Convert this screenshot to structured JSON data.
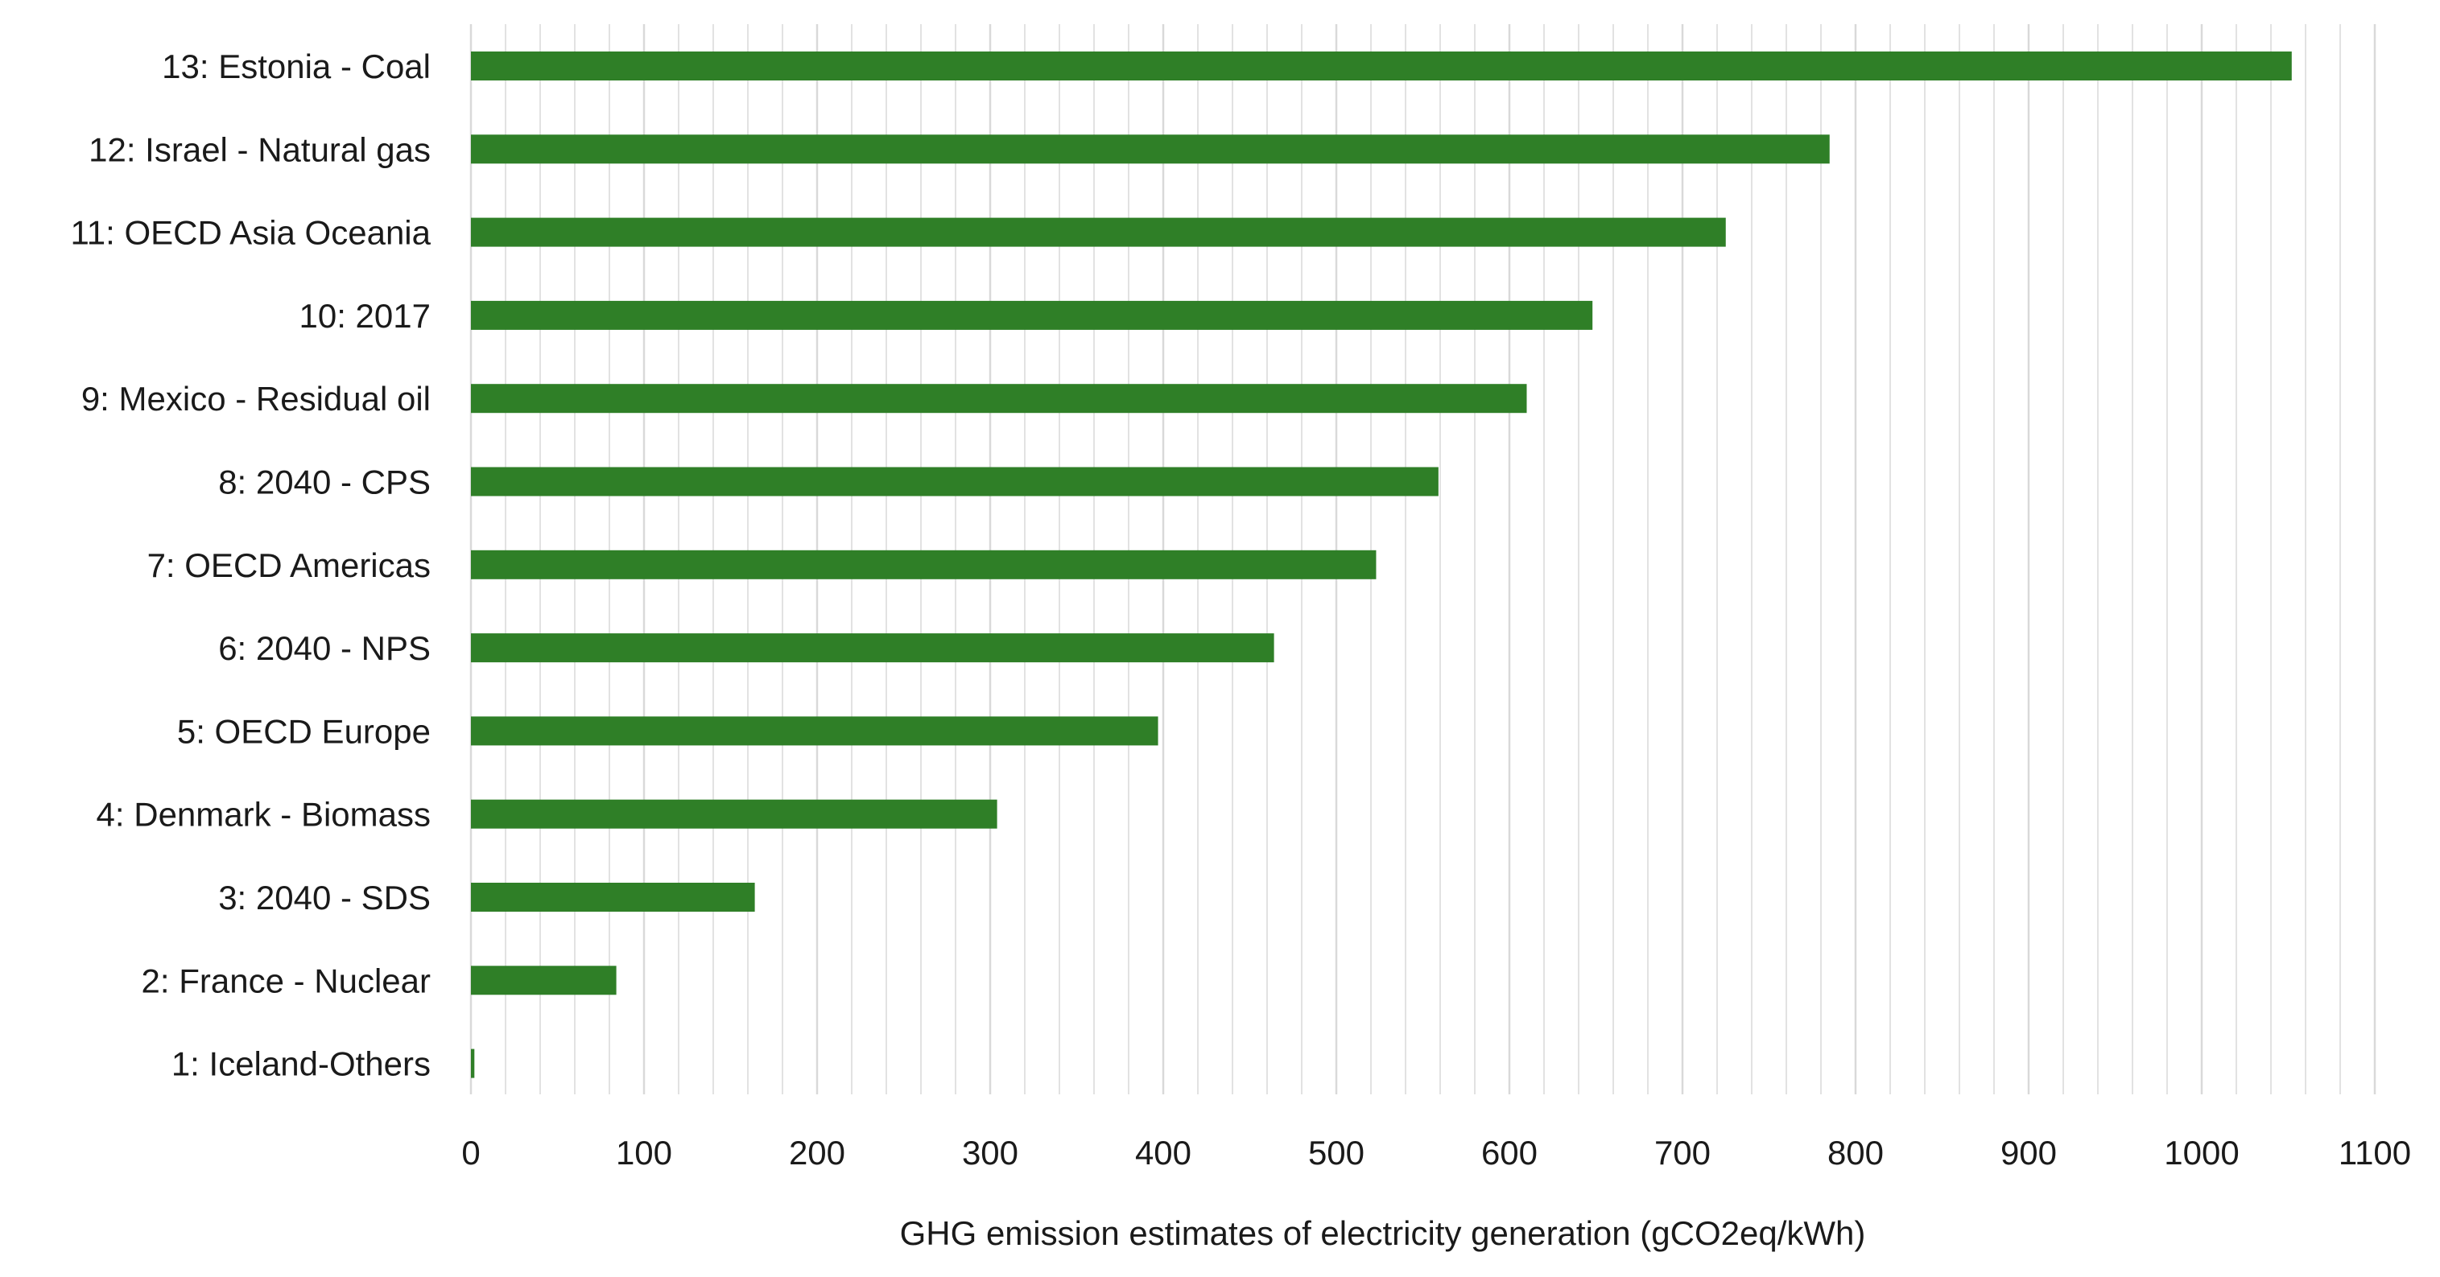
{
  "chart_data": {
    "type": "bar",
    "orientation": "horizontal",
    "categories": [
      "1: Iceland-Others",
      "2: France - Nuclear",
      "3: 2040 - SDS",
      "4: Denmark - Biomass",
      "5: OECD Europe",
      "6: 2040 - NPS",
      "7: OECD Americas",
      "8: 2040 - CPS",
      "9: Mexico - Residual oil",
      "10: 2017",
      "11: OECD Asia Oceania",
      "12: Israel - Natural gas",
      "13: Estonia - Coal"
    ],
    "values": [
      2,
      84,
      164,
      304,
      397,
      464,
      523,
      559,
      610,
      648,
      725,
      785,
      1052
    ],
    "title": "",
    "xlabel": "GHG emission estimates of electricity generation (gCO2eq/kWh)",
    "ylabel": "",
    "xlim": [
      0,
      1100
    ],
    "xticks": [
      "0",
      "100",
      "200",
      "300",
      "400",
      "500",
      "600",
      "700",
      "800",
      "900",
      "1000",
      "1100"
    ],
    "grid": "vertical",
    "bar_color": "#2f7f27",
    "grid_color": "#d9d9d9"
  }
}
